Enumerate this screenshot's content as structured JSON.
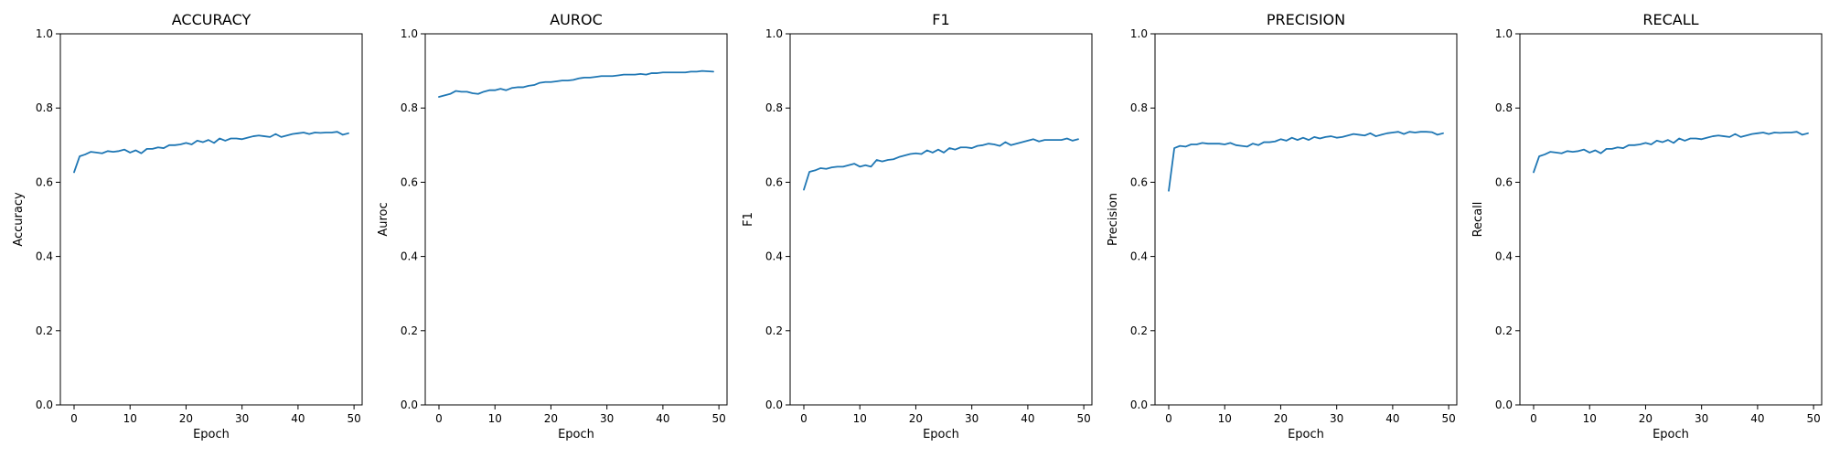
{
  "figure": {
    "colors": {
      "series": "#1f77b4",
      "background": "#ffffff",
      "axes": "#000000"
    }
  },
  "chart_data": [
    {
      "type": "line",
      "title": "ACCURACY",
      "xlabel": "Epoch",
      "ylabel": "Accuracy",
      "xlim": [
        -2.45,
        51.45
      ],
      "ylim": [
        0,
        1
      ],
      "xticks": [
        0,
        10,
        20,
        30,
        40,
        50
      ],
      "yticks": [
        0.0,
        0.2,
        0.4,
        0.6,
        0.8,
        1.0
      ],
      "grid": false,
      "series": [
        {
          "values": [
            0.627,
            0.67,
            0.675,
            0.682,
            0.68,
            0.678,
            0.684,
            0.682,
            0.684,
            0.688,
            0.68,
            0.686,
            0.678,
            0.69,
            0.69,
            0.694,
            0.692,
            0.7,
            0.7,
            0.702,
            0.706,
            0.702,
            0.712,
            0.708,
            0.714,
            0.706,
            0.718,
            0.712,
            0.718,
            0.718,
            0.716,
            0.72,
            0.724,
            0.726,
            0.724,
            0.722,
            0.73,
            0.722,
            0.726,
            0.73,
            0.732,
            0.734,
            0.73,
            0.734,
            0.733,
            0.734,
            0.734,
            0.736,
            0.728,
            0.732
          ]
        }
      ]
    },
    {
      "type": "line",
      "title": "AUROC",
      "xlabel": "Epoch",
      "ylabel": "Auroc",
      "xlim": [
        -2.45,
        51.45
      ],
      "ylim": [
        0,
        1
      ],
      "xticks": [
        0,
        10,
        20,
        30,
        40,
        50
      ],
      "yticks": [
        0.0,
        0.2,
        0.4,
        0.6,
        0.8,
        1.0
      ],
      "grid": false,
      "series": [
        {
          "values": [
            0.83,
            0.834,
            0.838,
            0.846,
            0.844,
            0.844,
            0.84,
            0.838,
            0.844,
            0.848,
            0.848,
            0.852,
            0.848,
            0.854,
            0.856,
            0.856,
            0.86,
            0.862,
            0.868,
            0.87,
            0.87,
            0.872,
            0.874,
            0.874,
            0.876,
            0.88,
            0.882,
            0.882,
            0.884,
            0.886,
            0.886,
            0.886,
            0.888,
            0.89,
            0.89,
            0.89,
            0.892,
            0.89,
            0.894,
            0.894,
            0.896,
            0.896,
            0.896,
            0.896,
            0.896,
            0.898,
            0.898,
            0.9,
            0.899,
            0.898
          ]
        }
      ]
    },
    {
      "type": "line",
      "title": "F1",
      "xlabel": "Epoch",
      "ylabel": "F1",
      "xlim": [
        -2.45,
        51.45
      ],
      "ylim": [
        0,
        1
      ],
      "xticks": [
        0,
        10,
        20,
        30,
        40,
        50
      ],
      "yticks": [
        0.0,
        0.2,
        0.4,
        0.6,
        0.8,
        1.0
      ],
      "grid": false,
      "series": [
        {
          "values": [
            0.58,
            0.628,
            0.632,
            0.638,
            0.636,
            0.64,
            0.642,
            0.642,
            0.646,
            0.65,
            0.642,
            0.646,
            0.642,
            0.66,
            0.656,
            0.66,
            0.662,
            0.668,
            0.672,
            0.676,
            0.678,
            0.676,
            0.686,
            0.68,
            0.688,
            0.68,
            0.692,
            0.688,
            0.694,
            0.694,
            0.692,
            0.698,
            0.7,
            0.704,
            0.702,
            0.698,
            0.708,
            0.7,
            0.704,
            0.708,
            0.712,
            0.716,
            0.71,
            0.714,
            0.714,
            0.714,
            0.714,
            0.718,
            0.712,
            0.716
          ]
        }
      ]
    },
    {
      "type": "line",
      "title": "PRECISION",
      "xlabel": "Epoch",
      "ylabel": "Precision",
      "xlim": [
        -2.45,
        51.45
      ],
      "ylim": [
        0,
        1
      ],
      "xticks": [
        0,
        10,
        20,
        30,
        40,
        50
      ],
      "yticks": [
        0.0,
        0.2,
        0.4,
        0.6,
        0.8,
        1.0
      ],
      "grid": false,
      "series": [
        {
          "values": [
            0.577,
            0.692,
            0.698,
            0.696,
            0.702,
            0.702,
            0.706,
            0.704,
            0.704,
            0.704,
            0.702,
            0.706,
            0.7,
            0.698,
            0.696,
            0.704,
            0.7,
            0.708,
            0.708,
            0.71,
            0.716,
            0.712,
            0.72,
            0.714,
            0.72,
            0.714,
            0.722,
            0.718,
            0.722,
            0.724,
            0.72,
            0.722,
            0.726,
            0.73,
            0.728,
            0.726,
            0.732,
            0.724,
            0.728,
            0.732,
            0.734,
            0.736,
            0.73,
            0.736,
            0.734,
            0.736,
            0.736,
            0.735,
            0.728,
            0.732
          ]
        }
      ]
    },
    {
      "type": "line",
      "title": "RECALL",
      "xlabel": "Epoch",
      "ylabel": "Recall",
      "xlim": [
        -2.45,
        51.45
      ],
      "ylim": [
        0,
        1
      ],
      "xticks": [
        0,
        10,
        20,
        30,
        40,
        50
      ],
      "yticks": [
        0.0,
        0.2,
        0.4,
        0.6,
        0.8,
        1.0
      ],
      "grid": false,
      "series": [
        {
          "values": [
            0.627,
            0.67,
            0.675,
            0.682,
            0.68,
            0.678,
            0.684,
            0.682,
            0.684,
            0.688,
            0.68,
            0.686,
            0.678,
            0.69,
            0.69,
            0.694,
            0.692,
            0.7,
            0.7,
            0.702,
            0.706,
            0.702,
            0.712,
            0.708,
            0.714,
            0.706,
            0.718,
            0.712,
            0.718,
            0.718,
            0.716,
            0.72,
            0.724,
            0.726,
            0.724,
            0.722,
            0.73,
            0.722,
            0.726,
            0.73,
            0.732,
            0.734,
            0.73,
            0.734,
            0.733,
            0.734,
            0.734,
            0.736,
            0.728,
            0.732
          ]
        }
      ]
    }
  ]
}
